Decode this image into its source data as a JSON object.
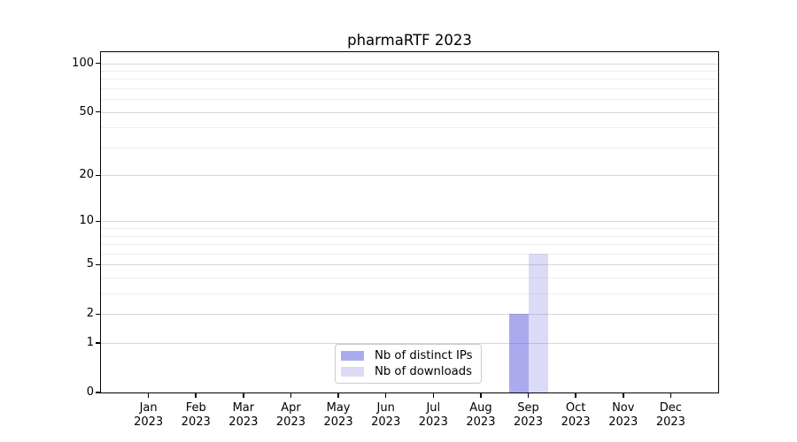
{
  "chart_data": {
    "type": "bar",
    "title": "pharmaRTF 2023",
    "categories": [
      "Jan",
      "Feb",
      "Mar",
      "Apr",
      "May",
      "Jun",
      "Jul",
      "Aug",
      "Sep",
      "Oct",
      "Nov",
      "Dec"
    ],
    "x_tick_year": "2023",
    "series": [
      {
        "id": "distinct-ips",
        "name": "Nb of distinct IPs",
        "color": "#aaaaef",
        "values": [
          0,
          0,
          0,
          0,
          0,
          0,
          0,
          0,
          2,
          0,
          0,
          0
        ]
      },
      {
        "id": "downloads",
        "name": "Nb of downloads",
        "color": "#dbdbf8",
        "values": [
          0,
          0,
          0,
          0,
          0,
          0,
          0,
          0,
          6,
          0,
          0,
          0
        ]
      }
    ],
    "yscale": "log1p",
    "ylim": [
      0,
      117
    ],
    "y_ticks": [
      0,
      1,
      2,
      5,
      10,
      20,
      50,
      100
    ],
    "y_minor_ticks": [
      3,
      4,
      6,
      7,
      8,
      9,
      30,
      40,
      60,
      70,
      80,
      90
    ],
    "grid": true,
    "legend_position": "lower center"
  }
}
